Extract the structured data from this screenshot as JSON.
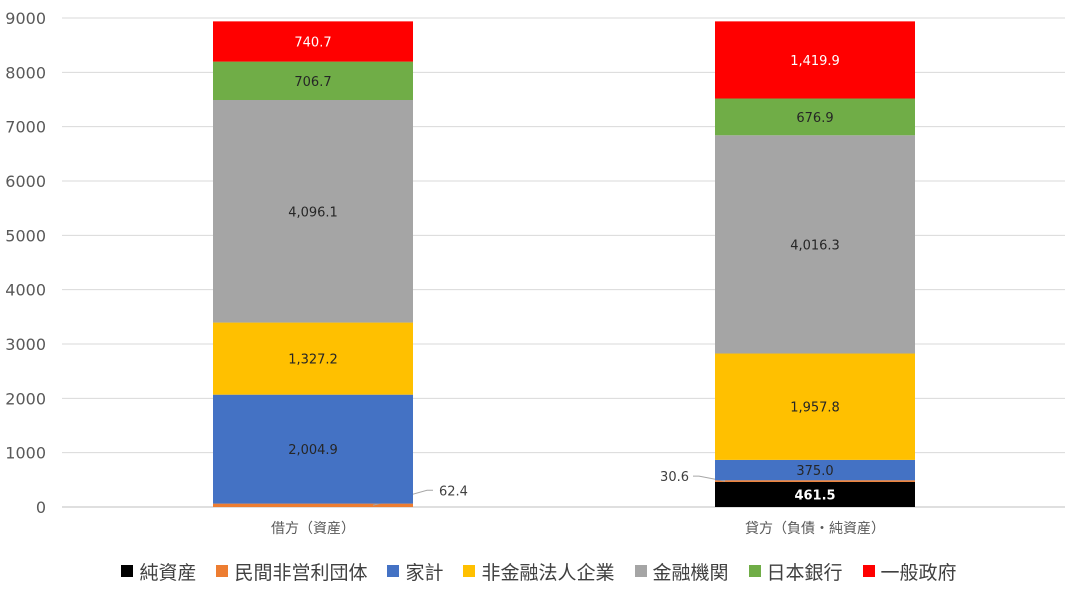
{
  "chart_data": {
    "type": "bar",
    "stacked": true,
    "title": "",
    "xlabel": "",
    "ylabel": "",
    "ylim": [
      0,
      9000
    ],
    "yticks": [
      0,
      1000,
      2000,
      3000,
      4000,
      5000,
      6000,
      7000,
      8000,
      9000
    ],
    "grid": true,
    "legend_position": "bottom",
    "categories": [
      "借方（資産）",
      "貸方（負債・純資産）"
    ],
    "series": [
      {
        "name": "純資産",
        "color": "#000000",
        "values": [
          0,
          461.5
        ],
        "labels": [
          "",
          "461.5"
        ]
      },
      {
        "name": "民間非営利団体",
        "color": "#ED7D31",
        "values": [
          62.4,
          30.6
        ],
        "labels": [
          "62.4",
          "30.6"
        ]
      },
      {
        "name": "家計",
        "color": "#4472C4",
        "values": [
          2004.9,
          375.0
        ],
        "labels": [
          "2,004.9",
          "375.0"
        ]
      },
      {
        "name": "非金融法人企業",
        "color": "#FFC000",
        "values": [
          1327.2,
          1957.8
        ],
        "labels": [
          "1,327.2",
          "1,957.8"
        ]
      },
      {
        "name": "金融機関",
        "color": "#A5A5A5",
        "values": [
          4096.1,
          4016.3
        ],
        "labels": [
          "4,096.1",
          "4,016.3"
        ]
      },
      {
        "name": "日本銀行",
        "color": "#70AD47",
        "values": [
          706.7,
          676.9
        ],
        "labels": [
          "706.7",
          "676.9"
        ]
      },
      {
        "name": "一般政府",
        "color": "#FF0000",
        "values": [
          740.7,
          1419.9
        ],
        "labels": [
          "740.7",
          "1,419.9"
        ]
      }
    ]
  }
}
